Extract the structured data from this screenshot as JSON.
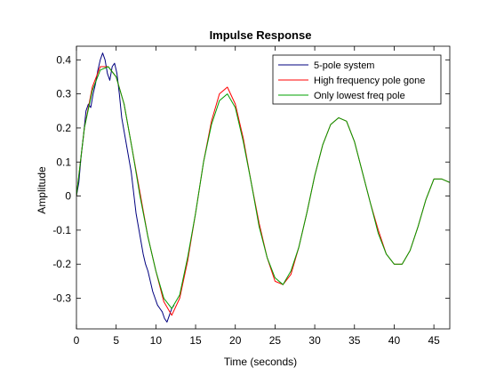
{
  "chart_data": {
    "type": "line",
    "title": "Impulse Response",
    "xlabel": "Time (seconds)",
    "ylabel": "Amplitude",
    "xlim": [
      0,
      47
    ],
    "ylim": [
      -0.39,
      0.44
    ],
    "xticks": [
      "0",
      "5",
      "10",
      "15",
      "20",
      "25",
      "30",
      "35",
      "40",
      "45"
    ],
    "yticks": [
      "-0.3",
      "-0.2",
      "-0.1",
      "0",
      "0.1",
      "0.2",
      "0.3",
      "0.4"
    ],
    "grid": false,
    "legend_position": "top-right",
    "series": [
      {
        "name": "5-pole system",
        "color": "#00007f",
        "x": [
          0,
          0.3,
          0.6,
          0.9,
          1.2,
          1.5,
          1.8,
          2.1,
          2.4,
          2.7,
          3.0,
          3.3,
          3.6,
          3.9,
          4.2,
          4.5,
          4.8,
          5.1,
          5.4,
          5.7,
          6.0,
          6.3,
          6.6,
          6.9,
          7.2,
          7.5,
          7.8,
          8.1,
          8.4,
          8.7,
          9.0,
          9.3,
          9.6,
          9.9,
          10.2,
          10.5,
          10.8,
          11.1,
          11.4,
          11.7,
          12.0,
          12.3
        ],
        "y": [
          0.0,
          0.04,
          0.12,
          0.18,
          0.25,
          0.27,
          0.26,
          0.3,
          0.33,
          0.37,
          0.4,
          0.42,
          0.4,
          0.36,
          0.34,
          0.38,
          0.39,
          0.36,
          0.3,
          0.23,
          0.19,
          0.15,
          0.11,
          0.07,
          0.01,
          -0.05,
          -0.09,
          -0.13,
          -0.17,
          -0.2,
          -0.22,
          -0.25,
          -0.28,
          -0.3,
          -0.32,
          -0.33,
          -0.34,
          -0.36,
          -0.37,
          -0.35,
          -0.33,
          -0.32
        ]
      },
      {
        "name": "High frequency pole gone",
        "color": "#ff0000",
        "x": [
          0,
          1,
          2,
          3,
          4,
          5,
          6,
          7,
          8,
          9,
          10,
          11,
          12,
          13,
          14,
          15,
          16,
          17,
          18,
          19,
          20,
          21,
          22,
          23,
          24,
          25,
          26,
          27,
          28,
          29,
          30,
          31,
          32,
          33,
          34,
          35,
          36,
          37,
          38,
          39,
          40,
          41,
          42,
          43,
          44,
          45,
          46,
          47
        ],
        "y": [
          0.0,
          0.2,
          0.32,
          0.38,
          0.38,
          0.35,
          0.27,
          0.14,
          0.01,
          -0.12,
          -0.22,
          -0.31,
          -0.35,
          -0.3,
          -0.19,
          -0.05,
          0.1,
          0.22,
          0.3,
          0.32,
          0.27,
          0.17,
          0.04,
          -0.08,
          -0.18,
          -0.25,
          -0.26,
          -0.23,
          -0.15,
          -0.05,
          0.06,
          0.15,
          0.21,
          0.23,
          0.22,
          0.16,
          0.07,
          -0.02,
          -0.1,
          -0.17,
          -0.2,
          -0.2,
          -0.16,
          -0.09,
          -0.01,
          0.05,
          0.05,
          0.04
        ]
      },
      {
        "name": "Only lowest freq pole",
        "color": "#00a000",
        "x": [
          0,
          1,
          2,
          3,
          4,
          5,
          6,
          7,
          8,
          9,
          10,
          11,
          12,
          13,
          14,
          15,
          16,
          17,
          18,
          19,
          20,
          21,
          22,
          23,
          24,
          25,
          26,
          27,
          28,
          29,
          30,
          31,
          32,
          33,
          34,
          35,
          36,
          37,
          38,
          39,
          40,
          41,
          42,
          43,
          44,
          45,
          46,
          47
        ],
        "y": [
          0.0,
          0.2,
          0.31,
          0.37,
          0.38,
          0.35,
          0.27,
          0.14,
          0.0,
          -0.12,
          -0.22,
          -0.3,
          -0.33,
          -0.29,
          -0.18,
          -0.05,
          0.1,
          0.21,
          0.28,
          0.3,
          0.26,
          0.16,
          0.04,
          -0.09,
          -0.18,
          -0.24,
          -0.26,
          -0.22,
          -0.15,
          -0.05,
          0.06,
          0.15,
          0.21,
          0.23,
          0.22,
          0.16,
          0.07,
          -0.02,
          -0.11,
          -0.17,
          -0.2,
          -0.2,
          -0.16,
          -0.09,
          -0.01,
          0.05,
          0.05,
          0.04
        ]
      }
    ]
  }
}
